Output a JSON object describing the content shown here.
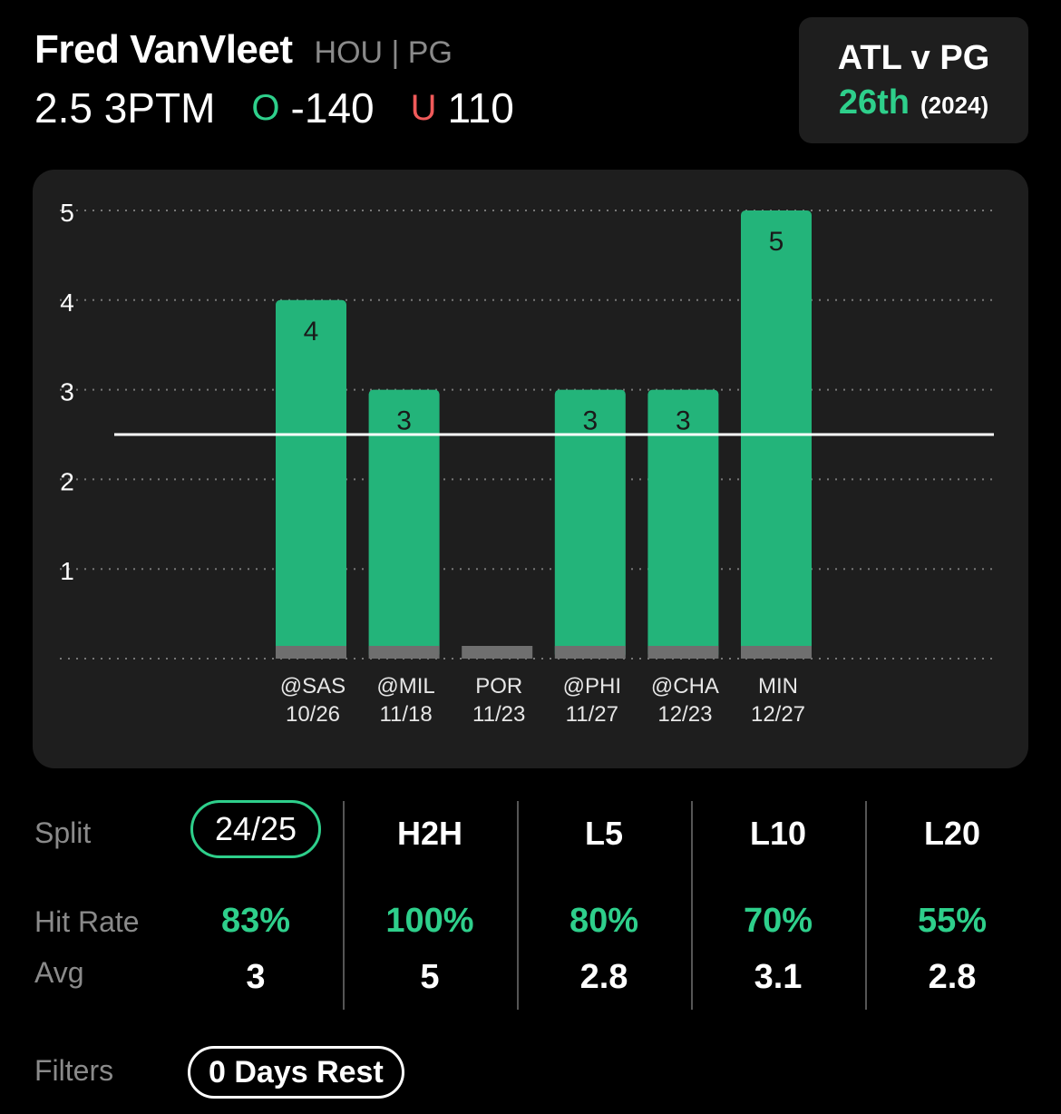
{
  "header": {
    "player_name": "Fred VanVleet",
    "team_position": "HOU | PG",
    "prop": "2.5 3PTM",
    "over_symbol": "O",
    "over_odds": "-140",
    "under_symbol": "U",
    "under_odds": "110"
  },
  "matchup": {
    "title": "ATL v PG",
    "rank": "26th",
    "season": "(2024)"
  },
  "colors": {
    "accent_green": "#2ecf8b",
    "bar_green": "#23b47a",
    "under_red": "#f05a5a",
    "card_bg": "#1e1e1e"
  },
  "chart_data": {
    "type": "bar",
    "line": 2.5,
    "ylim": [
      0,
      5
    ],
    "yticks": [
      1,
      2,
      3,
      4,
      5
    ],
    "games": [
      {
        "opponent": "@SAS",
        "date": "10/26",
        "value": 4
      },
      {
        "opponent": "@MIL",
        "date": "11/18",
        "value": 3
      },
      {
        "opponent": "POR",
        "date": "11/23",
        "value": 0
      },
      {
        "opponent": "@PHI",
        "date": "11/27",
        "value": 3
      },
      {
        "opponent": "@CHA",
        "date": "12/23",
        "value": 3
      },
      {
        "opponent": "MIN",
        "date": "12/27",
        "value": 5
      }
    ]
  },
  "splits": {
    "split_label": "Split",
    "hit_rate_label": "Hit Rate",
    "avg_label": "Avg",
    "columns": [
      {
        "name": "24/25",
        "hit_rate": "83%",
        "avg": "3",
        "selected": true
      },
      {
        "name": "H2H",
        "hit_rate": "100%",
        "avg": "5",
        "selected": false
      },
      {
        "name": "L5",
        "hit_rate": "80%",
        "avg": "2.8",
        "selected": false
      },
      {
        "name": "L10",
        "hit_rate": "70%",
        "avg": "3.1",
        "selected": false
      },
      {
        "name": "L20",
        "hit_rate": "55%",
        "avg": "2.8",
        "selected": false
      }
    ]
  },
  "filters": {
    "label": "Filters",
    "chip": "0 Days Rest"
  }
}
